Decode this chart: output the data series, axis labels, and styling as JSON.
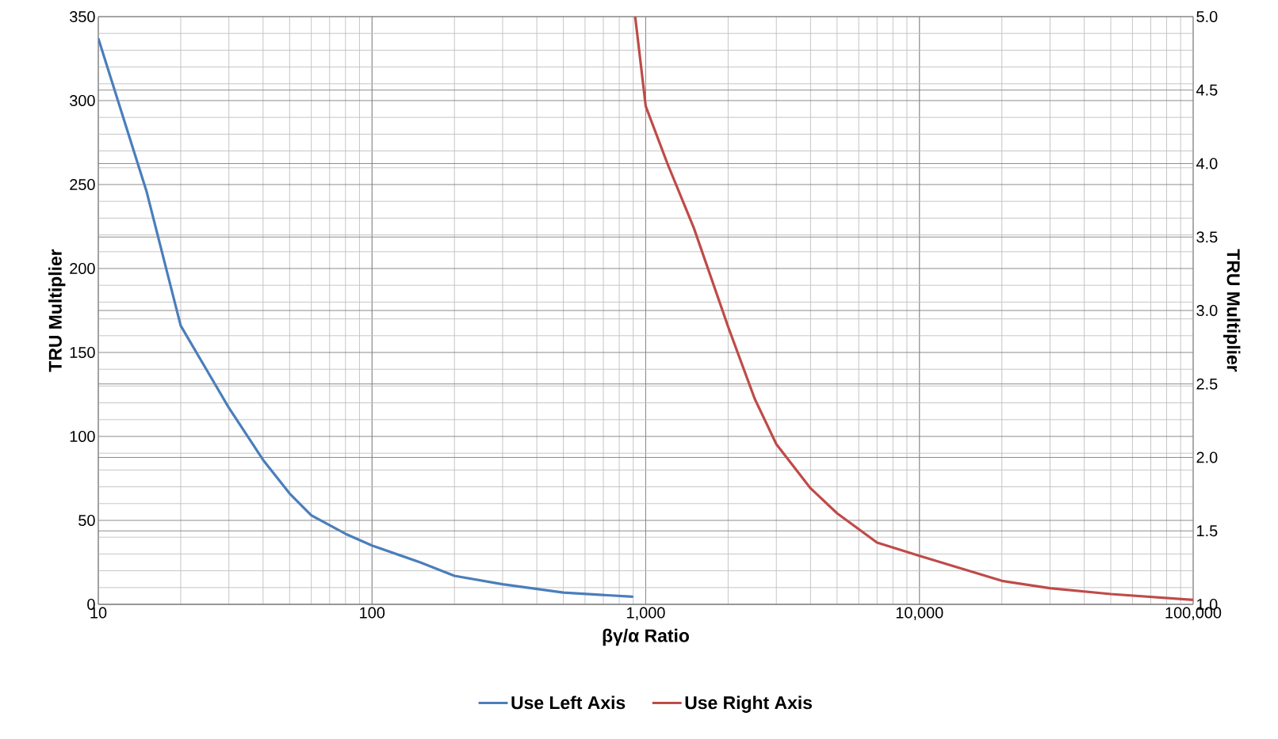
{
  "chart_data": {
    "type": "line",
    "xlabel": "βγ/α Ratio",
    "ylabel": "TRU Multiplier",
    "y2label": "TRU Multiplier",
    "log": "x",
    "grid": true,
    "legend": "bottom",
    "marker": "none",
    "line_style": "solid",
    "xlim": [
      10,
      100000
    ],
    "ylim": [
      0,
      350
    ],
    "y2lim": [
      1.0,
      5.0
    ],
    "xticks": [
      {
        "value": 10,
        "label": "10"
      },
      {
        "value": 100,
        "label": "100"
      },
      {
        "value": 1000,
        "label": "1,000"
      },
      {
        "value": 10000,
        "label": "10,000"
      },
      {
        "value": 100000,
        "label": "100,000"
      }
    ],
    "yticks": [
      0,
      50,
      100,
      150,
      200,
      250,
      300,
      350
    ],
    "y2ticks": [
      {
        "value": 1.0,
        "label": "1.0"
      },
      {
        "value": 1.5,
        "label": "1.5"
      },
      {
        "value": 2.0,
        "label": "2.0"
      },
      {
        "value": 2.5,
        "label": "2.5"
      },
      {
        "value": 3.0,
        "label": "3.0"
      },
      {
        "value": 3.5,
        "label": "3.5"
      },
      {
        "value": 4.0,
        "label": "4.0"
      },
      {
        "value": 4.5,
        "label": "4.5"
      },
      {
        "value": 5.0,
        "label": "5.0"
      }
    ],
    "series": [
      {
        "name": "Use Left Axis",
        "color": "#4a7ebb",
        "x": [
          10,
          15,
          20,
          25,
          30,
          40,
          50,
          60,
          80,
          100,
          150,
          200,
          300,
          500,
          900
        ],
        "values": [
          337,
          246,
          166,
          139,
          117,
          86,
          66,
          53,
          42,
          35,
          25,
          17,
          12,
          7,
          4.5
        ]
      },
      {
        "name": "Use Right Axis",
        "color": "#be4b48",
        "axis": "y2",
        "x": [
          915,
          1000,
          1200,
          1500,
          2000,
          2500,
          3000,
          4000,
          5000,
          7000,
          10000,
          20000,
          30000,
          50000,
          100000
        ],
        "values": [
          5.0,
          4.39,
          4.0,
          3.56,
          2.89,
          2.4,
          2.09,
          1.79,
          1.62,
          1.42,
          1.33,
          1.16,
          1.11,
          1.07,
          1.03
        ]
      }
    ]
  }
}
